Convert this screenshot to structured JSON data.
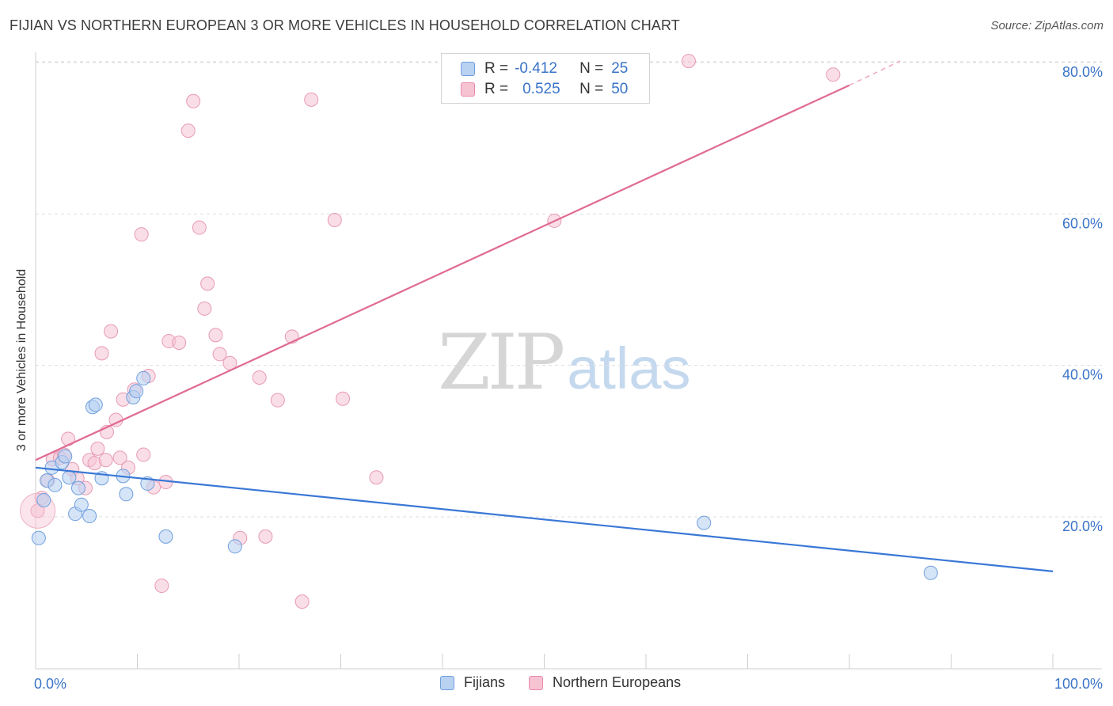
{
  "title": "FIJIAN VS NORTHERN EUROPEAN 3 OR MORE VEHICLES IN HOUSEHOLD CORRELATION CHART",
  "source": "Source: ZipAtlas.com",
  "watermark": {
    "zip": "ZIP",
    "atlas": "atlas"
  },
  "colors": {
    "fijians": "#3a78d6",
    "northern_europeans": "#e06a92",
    "fijians_fill": "#b9d2f2",
    "northern_europeans_fill": "#f6c3d3",
    "tick_label": "#3a73c8"
  },
  "legend": {
    "rows": [
      {
        "r_label": "R =",
        "r_value": "-0.412",
        "n_label": "N =",
        "n_value": "25"
      },
      {
        "r_label": "R =",
        "r_value": "0.525",
        "n_label": "N =",
        "n_value": "50"
      }
    ]
  },
  "bottom_legend": [
    "Fijians",
    "Northern Europeans"
  ],
  "chart_data": {
    "type": "scatter",
    "title": "FIJIAN VS NORTHERN EUROPEAN 3 OR MORE VEHICLES IN HOUSEHOLD CORRELATION CHART",
    "xlabel": "",
    "ylabel": "3 or more Vehicles in Household",
    "xlim": [
      0,
      100
    ],
    "ylim": [
      0,
      84
    ],
    "x_tick_labels": [
      "0.0%",
      "100.0%"
    ],
    "y_ticks": [
      20,
      40,
      60,
      80
    ],
    "y_tick_labels": [
      "20.0%",
      "40.0%",
      "60.0%",
      "80.0%"
    ],
    "grid": true,
    "legend_position": "top-center",
    "series": [
      {
        "name": "Fijians",
        "r": -0.412,
        "n": 25,
        "trend": {
          "x0": 0,
          "y0": 26.5,
          "x1": 100,
          "y1": 12.8
        },
        "points": [
          [
            0.3,
            17.2
          ],
          [
            0.8,
            22.2
          ],
          [
            1.1,
            24.8
          ],
          [
            1.6,
            26.5
          ],
          [
            1.9,
            24.2
          ],
          [
            2.6,
            27.2
          ],
          [
            2.9,
            28.0
          ],
          [
            3.3,
            25.2
          ],
          [
            3.9,
            20.4
          ],
          [
            4.2,
            23.8
          ],
          [
            4.5,
            21.6
          ],
          [
            5.3,
            20.1
          ],
          [
            5.6,
            34.5
          ],
          [
            5.9,
            34.8
          ],
          [
            6.5,
            25.1
          ],
          [
            8.6,
            25.4
          ],
          [
            8.9,
            23.0
          ],
          [
            9.6,
            35.8
          ],
          [
            9.9,
            36.6
          ],
          [
            10.6,
            38.3
          ],
          [
            11.0,
            24.4
          ],
          [
            12.8,
            17.4
          ],
          [
            19.6,
            16.1
          ],
          [
            65.7,
            19.2
          ],
          [
            88.0,
            12.6
          ]
        ]
      },
      {
        "name": "Northern Europeans",
        "r": 0.525,
        "n": 50,
        "trend": {
          "x0": 0,
          "y0": 27.5,
          "x1": 80,
          "y1": 77.0,
          "dashed_to_x": 85,
          "dashed_to_y": 80.2
        },
        "points": [
          [
            0.2,
            20.8
          ],
          [
            0.6,
            22.5
          ],
          [
            1.2,
            24.8
          ],
          [
            1.7,
            27.6
          ],
          [
            2.4,
            27.8
          ],
          [
            2.8,
            28.2
          ],
          [
            3.2,
            30.3
          ],
          [
            3.6,
            26.3
          ],
          [
            4.1,
            25.1
          ],
          [
            4.9,
            23.8
          ],
          [
            5.3,
            27.5
          ],
          [
            5.8,
            27.1
          ],
          [
            6.1,
            29.0
          ],
          [
            6.5,
            41.6
          ],
          [
            6.9,
            27.5
          ],
          [
            7.0,
            31.2
          ],
          [
            7.4,
            44.5
          ],
          [
            7.9,
            32.8
          ],
          [
            8.3,
            27.8
          ],
          [
            8.6,
            35.5
          ],
          [
            9.1,
            26.5
          ],
          [
            9.7,
            36.8
          ],
          [
            10.4,
            57.3
          ],
          [
            10.6,
            28.2
          ],
          [
            11.1,
            38.6
          ],
          [
            11.6,
            23.9
          ],
          [
            12.4,
            10.9
          ],
          [
            12.8,
            24.6
          ],
          [
            13.1,
            43.2
          ],
          [
            14.1,
            43.0
          ],
          [
            15.0,
            71.0
          ],
          [
            15.5,
            74.9
          ],
          [
            16.1,
            58.2
          ],
          [
            16.6,
            47.5
          ],
          [
            16.9,
            50.8
          ],
          [
            17.7,
            44.0
          ],
          [
            18.1,
            41.5
          ],
          [
            19.1,
            40.3
          ],
          [
            20.1,
            17.2
          ],
          [
            22.0,
            38.4
          ],
          [
            22.6,
            17.4
          ],
          [
            23.8,
            35.4
          ],
          [
            25.2,
            43.8
          ],
          [
            26.2,
            8.8
          ],
          [
            27.1,
            75.1
          ],
          [
            29.4,
            59.2
          ],
          [
            30.2,
            35.6
          ],
          [
            33.5,
            25.2
          ],
          [
            51.0,
            59.1
          ],
          [
            64.2,
            80.2
          ]
        ]
      }
    ],
    "extra_point_northern": [
      78.4,
      78.4
    ]
  }
}
